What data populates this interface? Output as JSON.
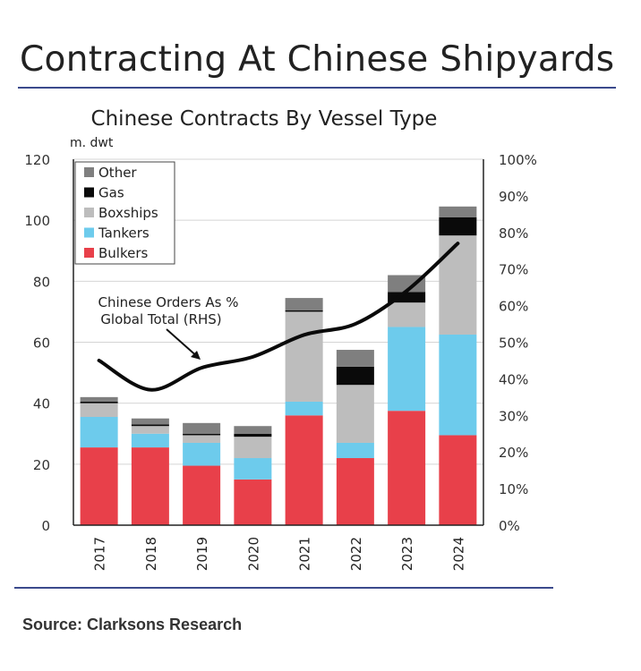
{
  "page_title": "Contracting At Chinese Shipyards",
  "source": "Source: Clarksons Research",
  "chart_data": {
    "type": "bar",
    "stacked": true,
    "title": "Chinese Contracts By Vessel Type",
    "ylabel": "m. dwt",
    "ylim": [
      0,
      120
    ],
    "yticks": [
      0,
      20,
      40,
      60,
      80,
      100,
      120
    ],
    "y2lim": [
      0,
      100
    ],
    "y2ticks": [
      "0%",
      "10%",
      "20%",
      "30%",
      "40%",
      "50%",
      "60%",
      "70%",
      "80%",
      "90%",
      "100%"
    ],
    "categories": [
      "2017",
      "2018",
      "2019",
      "2020",
      "2021",
      "2022",
      "2023",
      "2024"
    ],
    "series": [
      {
        "name": "Bulkers",
        "color": "#e8404a",
        "values": [
          25.5,
          25.5,
          19.5,
          15,
          36,
          22,
          37.5,
          29.5
        ]
      },
      {
        "name": "Tankers",
        "color": "#6dcbec",
        "values": [
          10,
          4.5,
          7.5,
          7,
          4.5,
          5,
          27.5,
          33
        ]
      },
      {
        "name": "Boxships",
        "color": "#bdbdbd",
        "values": [
          4.5,
          2.5,
          2.5,
          7,
          29.5,
          19,
          8,
          32.5
        ]
      },
      {
        "name": "Gas",
        "color": "#0a0a0a",
        "values": [
          0.5,
          0.5,
          0.5,
          1,
          0.5,
          6,
          3.5,
          6
        ]
      },
      {
        "name": "Other",
        "color": "#7f7f7f",
        "values": [
          1.5,
          2,
          3.5,
          2.5,
          4,
          5.5,
          5.5,
          3.5
        ]
      }
    ],
    "line": {
      "axis": "right",
      "values": [
        45,
        37,
        43,
        46,
        52,
        55,
        64,
        77
      ]
    },
    "annotation": {
      "text_line1": "Chinese Orders As %",
      "text_line2": "Global Total (RHS)"
    },
    "legend_position": "top-left",
    "grid": true
  }
}
